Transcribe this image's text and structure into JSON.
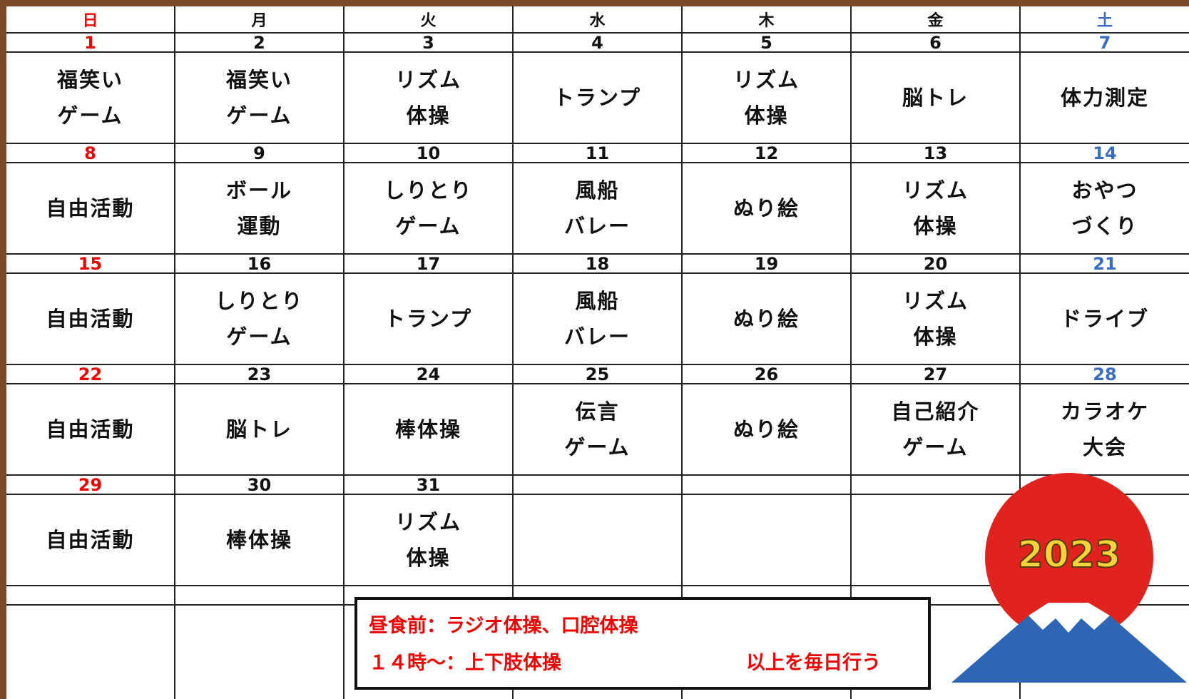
{
  "header": {
    "days": [
      "日",
      "月",
      "火",
      "水",
      "木",
      "金",
      "土"
    ]
  },
  "weeks": [
    [
      {
        "date": 1,
        "lines": [
          "福笑い",
          "ゲーム"
        ]
      },
      {
        "date": 2,
        "lines": [
          "福笑い",
          "ゲーム"
        ]
      },
      {
        "date": 3,
        "lines": [
          "リズム",
          "体操"
        ]
      },
      {
        "date": 4,
        "lines": [
          "トランプ"
        ]
      },
      {
        "date": 5,
        "lines": [
          "リズム",
          "体操"
        ]
      },
      {
        "date": 6,
        "lines": [
          "脳トレ"
        ]
      },
      {
        "date": 7,
        "lines": [
          "体力測定"
        ]
      }
    ],
    [
      {
        "date": 8,
        "lines": [
          "自由活動"
        ]
      },
      {
        "date": 9,
        "lines": [
          "ボール",
          "運動"
        ]
      },
      {
        "date": 10,
        "lines": [
          "しりとり",
          "ゲーム"
        ]
      },
      {
        "date": 11,
        "lines": [
          "風船",
          "バレー"
        ]
      },
      {
        "date": 12,
        "lines": [
          "ぬり絵"
        ]
      },
      {
        "date": 13,
        "lines": [
          "リズム",
          "体操"
        ]
      },
      {
        "date": 14,
        "lines": [
          "おやつ",
          "づくり"
        ]
      }
    ],
    [
      {
        "date": 15,
        "lines": [
          "自由活動"
        ]
      },
      {
        "date": 16,
        "lines": [
          "しりとり",
          "ゲーム"
        ]
      },
      {
        "date": 17,
        "lines": [
          "トランプ"
        ]
      },
      {
        "date": 18,
        "lines": [
          "風船",
          "バレー"
        ]
      },
      {
        "date": 19,
        "lines": [
          "ぬり絵"
        ]
      },
      {
        "date": 20,
        "lines": [
          "リズム",
          "体操"
        ]
      },
      {
        "date": 21,
        "lines": [
          "ドライブ"
        ]
      }
    ],
    [
      {
        "date": 22,
        "lines": [
          "自由活動"
        ]
      },
      {
        "date": 23,
        "lines": [
          "脳トレ"
        ]
      },
      {
        "date": 24,
        "lines": [
          "棒体操"
        ]
      },
      {
        "date": 25,
        "lines": [
          "伝言",
          "ゲーム"
        ]
      },
      {
        "date": 26,
        "lines": [
          "ぬり絵"
        ]
      },
      {
        "date": 27,
        "lines": [
          "自己紹介",
          "ゲーム"
        ]
      },
      {
        "date": 28,
        "lines": [
          "カラオケ",
          "大会"
        ]
      }
    ],
    [
      {
        "date": 29,
        "lines": [
          "自由活動"
        ]
      },
      {
        "date": 30,
        "lines": [
          "棒体操"
        ]
      },
      {
        "date": 31,
        "lines": [
          "リズム",
          "体操"
        ]
      }
    ]
  ],
  "note": {
    "line1": "昼食前：ラジオ体操、口腔体操",
    "line2": "１４時～：上下肢体操",
    "daily": "以上を毎日行う"
  },
  "badge": "2023"
}
